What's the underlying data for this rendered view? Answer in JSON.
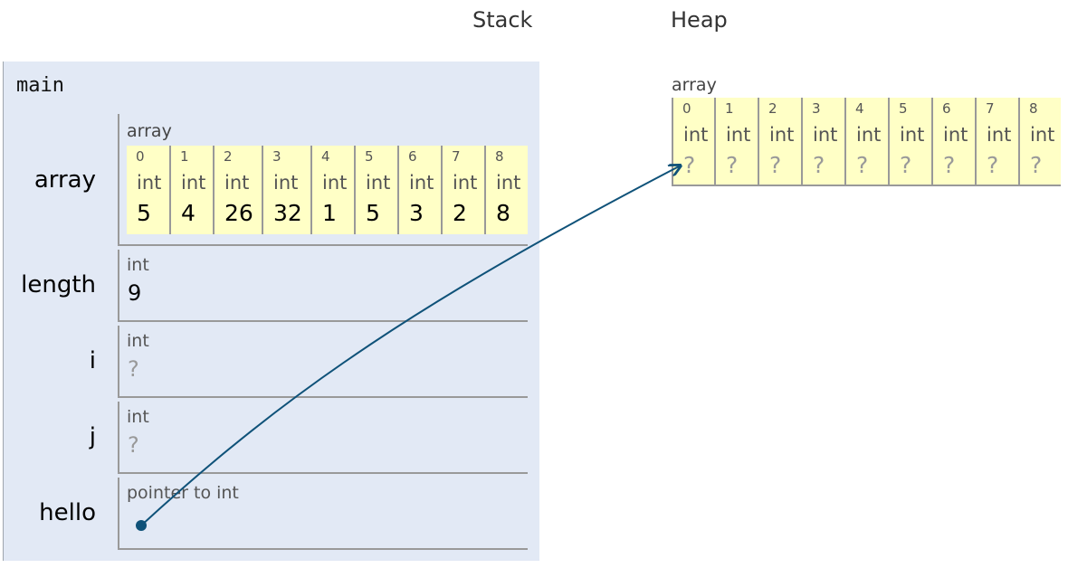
{
  "headings": {
    "stack": "Stack",
    "heap": "Heap"
  },
  "frame": {
    "title": "main",
    "variables": {
      "array": {
        "name": "array",
        "label": "array",
        "cells": [
          {
            "index": "0",
            "type": "int",
            "value": "5"
          },
          {
            "index": "1",
            "type": "int",
            "value": "4"
          },
          {
            "index": "2",
            "type": "int",
            "value": "26"
          },
          {
            "index": "3",
            "type": "int",
            "value": "32"
          },
          {
            "index": "4",
            "type": "int",
            "value": "1"
          },
          {
            "index": "5",
            "type": "int",
            "value": "5"
          },
          {
            "index": "6",
            "type": "int",
            "value": "3"
          },
          {
            "index": "7",
            "type": "int",
            "value": "2"
          },
          {
            "index": "8",
            "type": "int",
            "value": "8"
          }
        ]
      },
      "length": {
        "name": "length",
        "type": "int",
        "value": "9"
      },
      "i": {
        "name": "i",
        "type": "int",
        "value": "?"
      },
      "j": {
        "name": "j",
        "type": "int",
        "value": "?"
      },
      "hello": {
        "name": "hello",
        "type": "pointer to int"
      }
    }
  },
  "heap": {
    "label": "array",
    "cells": [
      {
        "index": "0",
        "type": "int",
        "value": "?"
      },
      {
        "index": "1",
        "type": "int",
        "value": "?"
      },
      {
        "index": "2",
        "type": "int",
        "value": "?"
      },
      {
        "index": "3",
        "type": "int",
        "value": "?"
      },
      {
        "index": "4",
        "type": "int",
        "value": "?"
      },
      {
        "index": "5",
        "type": "int",
        "value": "?"
      },
      {
        "index": "6",
        "type": "int",
        "value": "?"
      },
      {
        "index": "7",
        "type": "int",
        "value": "?"
      },
      {
        "index": "8",
        "type": "int",
        "value": "?"
      }
    ]
  },
  "colors": {
    "pointer": "#0f5279",
    "frame_bg": "#e2e9f5",
    "cell_bg": "#ffffc6"
  }
}
